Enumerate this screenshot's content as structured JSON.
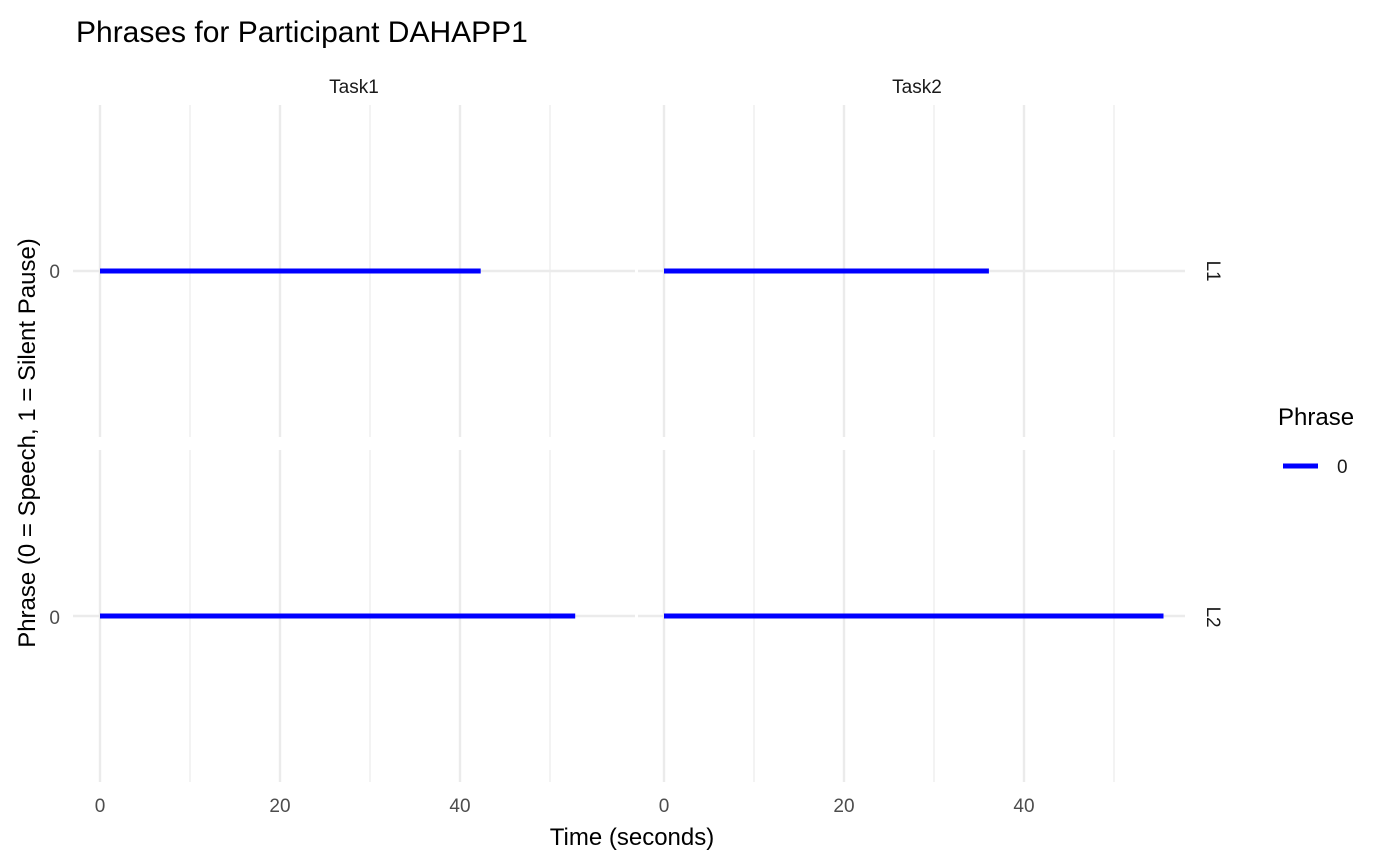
{
  "chart_data": {
    "type": "line",
    "title": "Phrases for Participant DAHAPP1",
    "xlabel": "Time (seconds)",
    "ylabel": "Phrase (0 = Speech, 1 = Silent Pause)",
    "facet_columns": [
      "Task1",
      "Task2"
    ],
    "facet_rows": [
      "L1",
      "L2"
    ],
    "xlim": [
      -3,
      58
    ],
    "x_ticks": [
      0,
      20,
      40
    ],
    "x_minor": [
      10,
      30,
      50
    ],
    "y_ticks": [
      "0"
    ],
    "grid": true,
    "legend": {
      "title": "Phrase",
      "position": "right",
      "entries": [
        {
          "label": "0",
          "color": "#0000ff"
        }
      ]
    },
    "panels": [
      {
        "row": "L1",
        "column": "Task1",
        "segments": [
          {
            "phrase": 0,
            "x_start": 0,
            "x_end": 42.3
          }
        ]
      },
      {
        "row": "L1",
        "column": "Task2",
        "segments": [
          {
            "phrase": 0,
            "x_start": 0,
            "x_end": 36.1
          }
        ]
      },
      {
        "row": "L2",
        "column": "Task1",
        "segments": [
          {
            "phrase": 0,
            "x_start": 0,
            "x_end": 52.8
          }
        ]
      },
      {
        "row": "L2",
        "column": "Task2",
        "segments": [
          {
            "phrase": 0,
            "x_start": 0,
            "x_end": 55.5
          }
        ]
      }
    ]
  }
}
